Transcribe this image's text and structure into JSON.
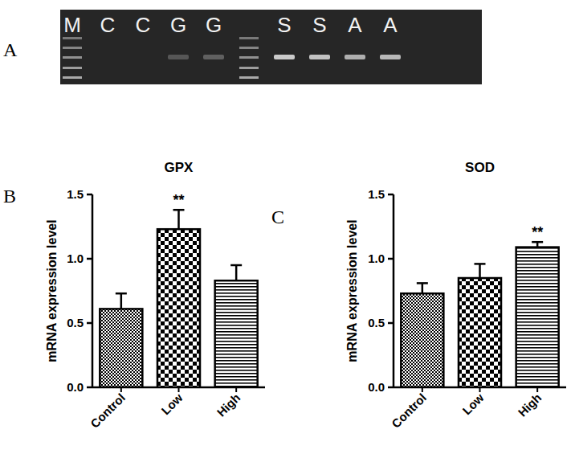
{
  "gel": {
    "panel_label": "A",
    "lanes": [
      {
        "label": "M",
        "type": "ladder"
      },
      {
        "label": "C",
        "band": 0
      },
      {
        "label": "C",
        "band": 0
      },
      {
        "label": "G",
        "band": 0.25
      },
      {
        "label": "G",
        "band": 0.3
      },
      {
        "label": null,
        "type": "ladder"
      },
      {
        "label": "S",
        "band": 0.85
      },
      {
        "label": "S",
        "band": 0.8
      },
      {
        "label": "A",
        "band": 0.7
      },
      {
        "label": "A",
        "band": 0.75
      }
    ]
  },
  "chart_data": [
    {
      "type": "bar",
      "panel_label": "B",
      "title": "GPX",
      "y_label": "mRNA expression level",
      "categories": [
        "Control",
        "Low",
        "High"
      ],
      "values": [
        0.61,
        1.23,
        0.83
      ],
      "errors": [
        0.12,
        0.15,
        0.12
      ],
      "significance": [
        null,
        "**",
        null
      ],
      "color": "#000000",
      "ylim": [
        0,
        1.5
      ],
      "yticks": [
        {
          "value": 0,
          "label": "0.0"
        },
        0.5,
        {
          "value": 1,
          "label": "1.0"
        },
        1.5
      ],
      "grid": false
    },
    {
      "type": "bar",
      "panel_label": "C",
      "title": "SOD",
      "y_label": "mRNA expression level",
      "categories": [
        "Control",
        "Low",
        "High"
      ],
      "values": [
        0.73,
        0.85,
        1.09
      ],
      "errors": [
        0.08,
        0.11,
        0.04
      ],
      "significance": [
        null,
        null,
        "**"
      ],
      "color": "#000000",
      "ylim": [
        0,
        1.5
      ],
      "yticks": [
        {
          "value": 0,
          "label": "0.0"
        },
        0.5,
        {
          "value": 1,
          "label": "1.0"
        },
        1.5
      ],
      "grid": false
    }
  ]
}
